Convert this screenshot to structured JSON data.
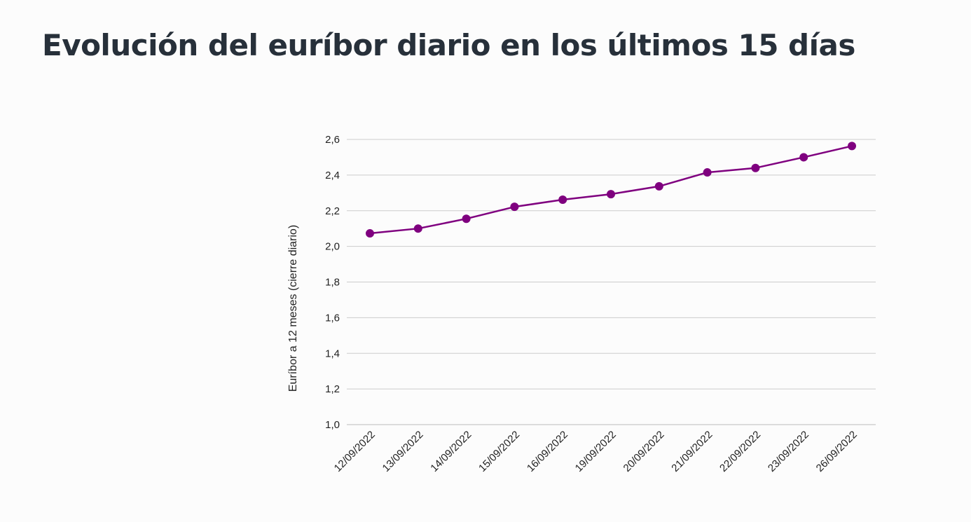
{
  "page": {
    "title": "Evolución del euríbor diario en los últimos 15 días"
  },
  "chart_data": {
    "type": "line",
    "title": "Evolución del euríbor diario en los últimos 15 días",
    "xlabel": "",
    "ylabel": "Euríbor a 12 meses (cierre diario)",
    "categories": [
      "12/09/2022",
      "13/09/2022",
      "14/09/2022",
      "15/09/2022",
      "16/09/2022",
      "19/09/2022",
      "20/09/2022",
      "21/09/2022",
      "22/09/2022",
      "23/09/2022",
      "26/09/2022"
    ],
    "series": [
      {
        "name": "Euríbor a 12 meses (cierre diario)",
        "values": [
          2.073,
          2.1,
          2.155,
          2.222,
          2.262,
          2.293,
          2.337,
          2.415,
          2.44,
          2.5,
          2.563
        ],
        "color": "#7f007f"
      }
    ],
    "ylim": [
      1.0,
      2.6
    ],
    "yticks": [
      1.0,
      1.2,
      1.4,
      1.6,
      1.8,
      2.0,
      2.2,
      2.4,
      2.6
    ],
    "ytick_labels": [
      "1,0",
      "1,2",
      "1,4",
      "1,6",
      "1,8",
      "2,0",
      "2,2",
      "2,4",
      "2,6"
    ],
    "grid": true,
    "legend": "none"
  },
  "colors": {
    "line": "#7f007f",
    "grid": "#cccccc",
    "title": "#27303a"
  }
}
